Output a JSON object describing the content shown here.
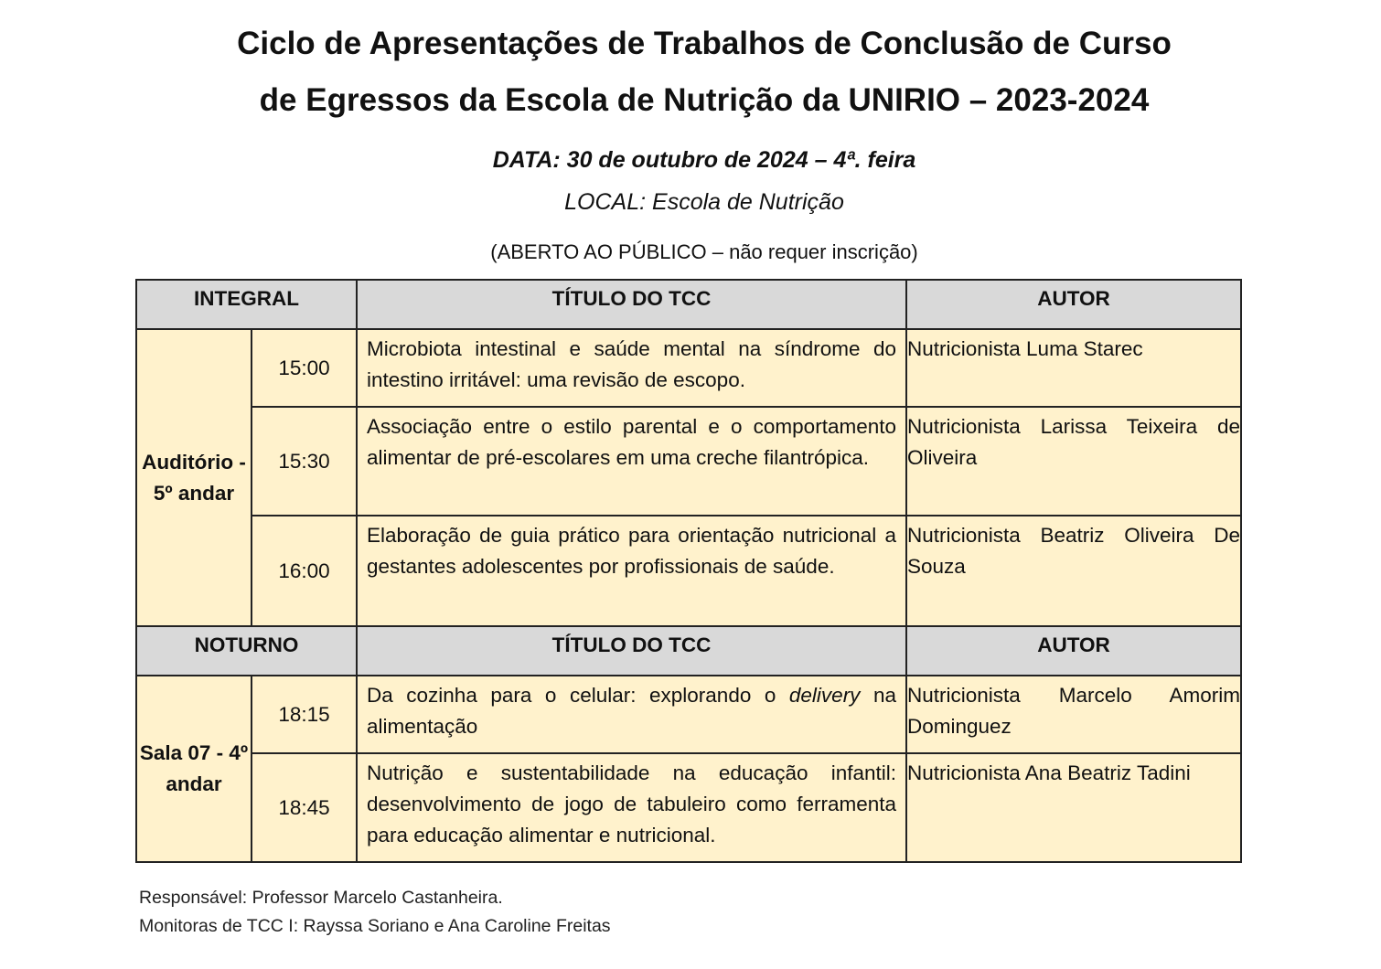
{
  "title_line1": "Ciclo de Apresentações de Trabalhos de Conclusão de Curso",
  "title_line2": "de Egressos da Escola de Nutrição da UNIRIO – 2023-2024",
  "date": "DATA: 30 de outubro de 2024 – 4ª. feira",
  "location": "LOCAL: Escola de Nutrição",
  "note": "(ABERTO AO PÚBLICO – não requer inscrição)",
  "integral": {
    "header": {
      "period": "INTEGRAL",
      "title": "TÍTULO DO TCC",
      "author": "AUTOR"
    },
    "place": "Auditório - 5º andar",
    "rows": [
      {
        "time": "15:00",
        "title": "Microbiota intestinal e saúde mental na síndrome do intestino irritável: uma revisão de escopo.",
        "author": "Nutricionista Luma Starec"
      },
      {
        "time": "15:30",
        "title": "Associação entre o estilo parental e o comportamento alimentar de pré-escolares em uma creche filantrópica.",
        "author": "Nutricionista Larissa Teixeira de Oliveira"
      },
      {
        "time": "16:00",
        "title": "Elaboração de guia prático para orientação nutricional a gestantes adolescentes por profissionais de saúde.",
        "author": "Nutricionista Beatriz Oliveira De Souza"
      }
    ]
  },
  "noturno": {
    "header": {
      "period": "NOTURNO",
      "title": "TÍTULO DO TCC",
      "author": "AUTOR"
    },
    "place": "Sala 07 - 4º andar",
    "rows": [
      {
        "time": "18:15",
        "title_before": "Da cozinha para o celular: explorando o ",
        "title_italic": "delivery",
        "title_after": " na alimentação",
        "author": "Nutricionista Marcelo Amorim Dominguez"
      },
      {
        "time": "18:45",
        "title": "Nutrição e sustentabilidade na educação infantil: desenvolvimento de jogo de tabuleiro como ferramenta para educação alimentar e nutricional.",
        "author": "Nutricionista Ana Beatriz Tadini"
      }
    ]
  },
  "footer": {
    "responsible": "Responsável: Professor Marcelo Castanheira.",
    "monitors": "Monitoras de TCC I: Rayssa Soriano e Ana Caroline Freitas"
  }
}
